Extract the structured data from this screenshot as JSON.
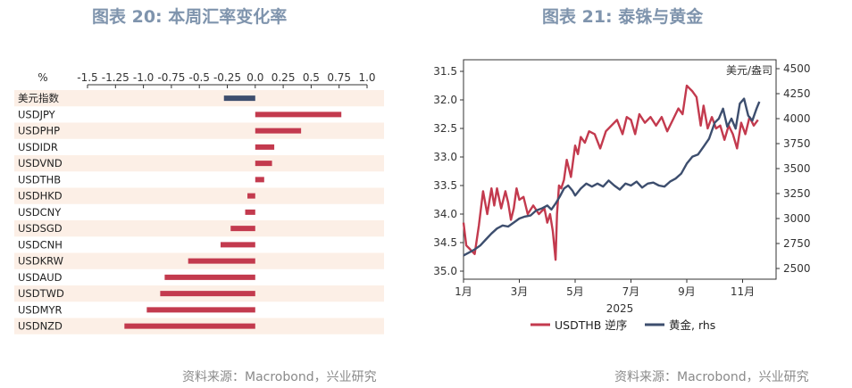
{
  "left_panel": {
    "title": "图表 20: 本周汇率变化率",
    "source": "资料来源：Macrobond，兴业研究"
  },
  "right_panel": {
    "title": "图表 21: 泰铢与黄金",
    "source": "资料来源：Macrobond，兴业研究"
  },
  "colors": {
    "red": "#c33a4e",
    "navy": "#3d4e6e",
    "stripe": "#fcefe6",
    "title": "#7f94ad"
  },
  "chart_data": [
    {
      "type": "bar",
      "orientation": "horizontal",
      "title": "图表 20: 本周汇率变化率",
      "xlabel": "%",
      "xlim": [
        -1.5,
        1.0
      ],
      "xticks": [
        -1.5,
        -1.25,
        -1.0,
        -0.75,
        -0.5,
        -0.25,
        0.0,
        0.25,
        0.5,
        0.75,
        1.0
      ],
      "xtick_labels": [
        "-1.5",
        "-1.25",
        "-1.0",
        "-0.75",
        "-0.5",
        "-0.25",
        "0.0",
        "0.25",
        "0.5",
        "0.75",
        "1.0"
      ],
      "categories": [
        "美元指数",
        "USDJPY",
        "USDPHP",
        "USDIDR",
        "USDVND",
        "USDTHB",
        "USDHKD",
        "USDCNY",
        "USDSGD",
        "USDCNH",
        "USDKRW",
        "USDAUD",
        "USDTWD",
        "USDMYR",
        "USDNZD"
      ],
      "values": [
        -0.28,
        0.77,
        0.41,
        0.17,
        0.15,
        0.08,
        -0.07,
        -0.09,
        -0.22,
        -0.31,
        -0.6,
        -0.81,
        -0.85,
        -0.97,
        -1.17
      ],
      "bar_colors": [
        "navy",
        "red",
        "red",
        "red",
        "red",
        "red",
        "red",
        "red",
        "red",
        "red",
        "red",
        "red",
        "red",
        "red",
        "red"
      ]
    },
    {
      "type": "line",
      "title": "图表 21: 泰铢与黄金",
      "xlabel": "2025",
      "x_ticks": [
        "1月",
        "3月",
        "5月",
        "7月",
        "9月",
        "11月"
      ],
      "x_tick_months": [
        1,
        3,
        5,
        7,
        9,
        11
      ],
      "xlim": [
        1,
        12.2
      ],
      "left_axis": {
        "ylim": [
          35.0,
          31.5
        ],
        "inverted": true,
        "ticks": [
          "31.5",
          "32.0",
          "32.5",
          "33.0",
          "33.5",
          "34.0",
          "34.5",
          "35.0"
        ]
      },
      "right_axis": {
        "ylim": [
          2500,
          4500
        ],
        "ticks": [
          "2500",
          "2750",
          "3000",
          "3250",
          "3500",
          "3750",
          "4000",
          "4250",
          "4500"
        ],
        "unit_label": "美元/盎司"
      },
      "series": [
        {
          "name": "USDTHB 逆序",
          "axis": "left",
          "color": "red",
          "x": [
            1.0,
            1.1,
            1.2,
            1.4,
            1.55,
            1.7,
            1.85,
            2.0,
            2.1,
            2.2,
            2.35,
            2.5,
            2.6,
            2.7,
            2.8,
            2.9,
            3.0,
            3.15,
            3.3,
            3.5,
            3.7,
            3.9,
            4.0,
            4.1,
            4.2,
            4.3,
            4.35,
            4.42,
            4.5,
            4.6,
            4.7,
            4.85,
            5.0,
            5.1,
            5.2,
            5.35,
            5.5,
            5.7,
            5.9,
            6.1,
            6.3,
            6.5,
            6.7,
            6.85,
            7.0,
            7.15,
            7.3,
            7.5,
            7.7,
            7.9,
            8.1,
            8.3,
            8.5,
            8.7,
            8.85,
            9.0,
            9.1,
            9.2,
            9.35,
            9.5,
            9.6,
            9.75,
            9.9,
            10.05,
            10.2,
            10.35,
            10.5,
            10.65,
            10.8,
            10.95,
            11.1,
            11.25,
            11.4,
            11.55
          ],
          "values": [
            34.15,
            34.55,
            34.6,
            34.7,
            34.2,
            33.6,
            34.0,
            33.55,
            33.85,
            33.55,
            33.9,
            33.6,
            33.8,
            34.1,
            33.9,
            33.55,
            33.75,
            33.7,
            34.0,
            33.85,
            34.0,
            33.9,
            34.15,
            34.0,
            34.3,
            34.8,
            34.0,
            33.5,
            33.55,
            33.4,
            33.05,
            33.35,
            32.8,
            32.95,
            32.65,
            32.75,
            32.55,
            32.6,
            32.85,
            32.55,
            32.45,
            32.35,
            32.6,
            32.3,
            32.35,
            32.6,
            32.25,
            32.4,
            32.3,
            32.45,
            32.3,
            32.55,
            32.35,
            32.15,
            32.25,
            31.75,
            31.8,
            31.85,
            31.95,
            32.45,
            32.1,
            32.5,
            32.3,
            32.5,
            32.45,
            32.7,
            32.45,
            32.6,
            32.85,
            32.4,
            32.6,
            32.3,
            32.45,
            32.35
          ]
        },
        {
          "name": "黄金, rhs",
          "axis": "right",
          "color": "navy",
          "x": [
            1.0,
            1.2,
            1.4,
            1.6,
            1.8,
            2.0,
            2.2,
            2.4,
            2.6,
            2.8,
            3.0,
            3.2,
            3.4,
            3.6,
            3.8,
            4.0,
            4.15,
            4.3,
            4.45,
            4.6,
            4.75,
            4.9,
            5.0,
            5.2,
            5.4,
            5.6,
            5.8,
            6.0,
            6.2,
            6.4,
            6.6,
            6.8,
            7.0,
            7.2,
            7.4,
            7.6,
            7.8,
            8.0,
            8.2,
            8.4,
            8.6,
            8.8,
            9.0,
            9.2,
            9.4,
            9.6,
            9.8,
            10.0,
            10.15,
            10.3,
            10.45,
            10.6,
            10.75,
            10.9,
            11.05,
            11.2,
            11.35,
            11.5,
            11.6
          ],
          "values": [
            2630,
            2660,
            2690,
            2730,
            2790,
            2850,
            2900,
            2930,
            2920,
            2960,
            3000,
            3020,
            3030,
            3080,
            3100,
            3130,
            3090,
            3150,
            3220,
            3300,
            3330,
            3280,
            3230,
            3300,
            3350,
            3320,
            3350,
            3320,
            3380,
            3330,
            3290,
            3350,
            3330,
            3370,
            3310,
            3350,
            3360,
            3330,
            3320,
            3370,
            3400,
            3450,
            3550,
            3620,
            3640,
            3720,
            3800,
            3960,
            4000,
            4100,
            3920,
            4000,
            3900,
            4150,
            4200,
            4030,
            3980,
            4100,
            4170
          ]
        }
      ],
      "legend": [
        "USDTHB 逆序",
        "黄金, rhs"
      ]
    }
  ]
}
